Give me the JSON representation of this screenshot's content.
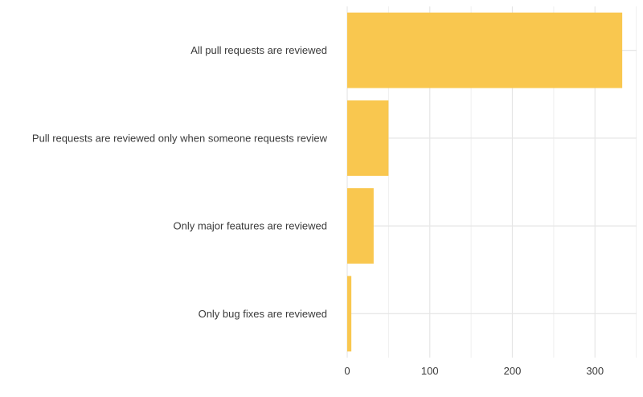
{
  "chart_data": {
    "type": "bar",
    "orientation": "horizontal",
    "categories": [
      "All pull requests are reviewed",
      "Pull requests are reviewed only when someone requests review",
      "Only major features are reviewed",
      "Only bug fixes are reviewed"
    ],
    "values": [
      333,
      50,
      32,
      5
    ],
    "xlim": [
      0,
      350
    ],
    "xticks": [
      0,
      100,
      200,
      300
    ],
    "xtick_labels": [
      "0",
      "100",
      "200",
      "300"
    ],
    "title": "",
    "xlabel": "",
    "ylabel": "",
    "grid": true,
    "legend": "none",
    "bar_color": "#F9C74F"
  }
}
